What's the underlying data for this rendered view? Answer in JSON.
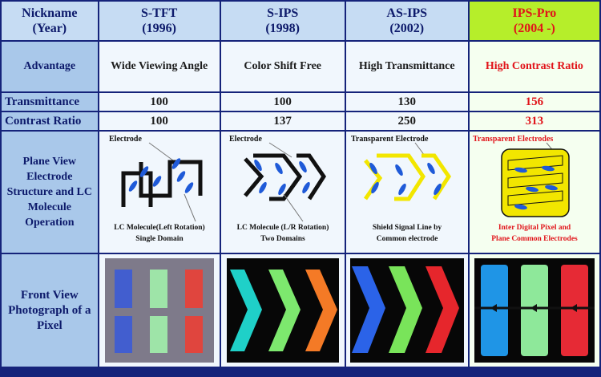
{
  "header": {
    "row_label": "Nickname\n(Year)",
    "columns": [
      {
        "name": "S-TFT",
        "year": "(1996)"
      },
      {
        "name": "S-IPS",
        "year": "(1998)"
      },
      {
        "name": "AS-IPS",
        "year": "(2002)"
      },
      {
        "name": "IPS-Pro",
        "year": "(2004 -)"
      }
    ]
  },
  "advantage": {
    "label": "Advantage",
    "values": [
      "Wide Viewing Angle",
      "Color Shift Free",
      "High Transmittance",
      "High Contrast Ratio"
    ]
  },
  "transmittance": {
    "label": "Transmittance",
    "values": [
      "100",
      "100",
      "130",
      "156"
    ]
  },
  "contrast": {
    "label": "Contrast Ratio",
    "values": [
      "100",
      "137",
      "250",
      "313"
    ]
  },
  "plane_view": {
    "label": "Plane View Electrode Structure and LC Molecule Operation",
    "top_labels": [
      "Electrode",
      "Electrode",
      "Transparent Electrode",
      "Transparent Electrodes"
    ],
    "captions": [
      [
        "LC Molecule(Left Rotation)",
        "Single Domain"
      ],
      [
        "LC Molecule (L/R Rotation)",
        "Two Domains"
      ],
      [
        "Shield  Signal Line by",
        "Common electrode"
      ],
      [
        "Inter Digital Pixel and",
        "Plane Common Electrodes"
      ]
    ]
  },
  "front_view": {
    "label": "Front View Photograph of a Pixel"
  },
  "colors": {
    "accent_red": "#e1141a",
    "pro_header": "#b6ee2a",
    "electrode_yellow": "#f2e600",
    "lc_blue": "#1f5ad8"
  }
}
